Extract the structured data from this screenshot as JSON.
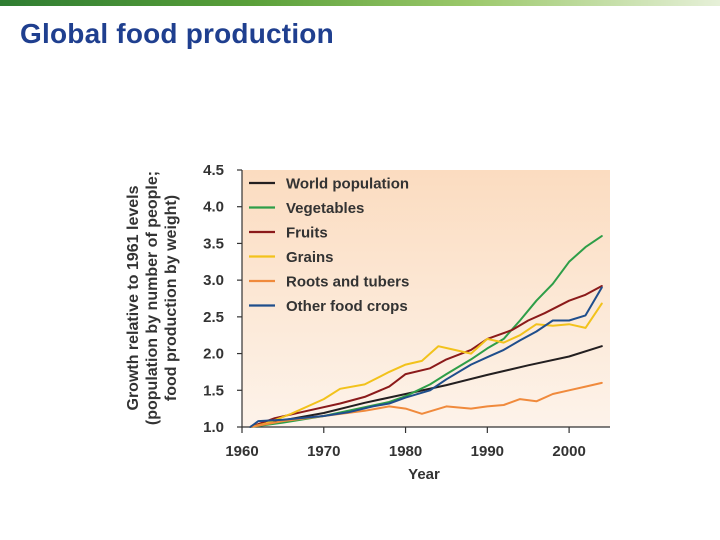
{
  "slide": {
    "title": "Global food production"
  },
  "chart_data": {
    "type": "line",
    "title": "",
    "xlabel": "Year",
    "ylabel": "Growth relative to 1961 levels (population by number of people; food production by weight)",
    "ylabel_lines": [
      "Growth relative to 1961 levels",
      "(population by number of people;",
      "food production by weight)"
    ],
    "xlim": [
      1960,
      2005
    ],
    "ylim": [
      1.0,
      4.5
    ],
    "xticks": [
      1960,
      1970,
      1980,
      1990,
      2000
    ],
    "xtick_labels": [
      "1960",
      "1970",
      "1980",
      "1990",
      "2000"
    ],
    "yticks": [
      1.0,
      1.5,
      2.0,
      2.5,
      3.0,
      3.5,
      4.0,
      4.5
    ],
    "ytick_labels": [
      "1.0",
      "1.5",
      "2.0",
      "2.5",
      "3.0",
      "3.5",
      "4.0",
      "4.5"
    ],
    "grid": false,
    "legend_position": "top-left",
    "background": "gradient-peach",
    "series": [
      {
        "name": "World population",
        "color": "#231f20",
        "x": [
          1961,
          1965,
          1970,
          1975,
          1980,
          1985,
          1990,
          1995,
          2000,
          2004
        ],
        "y": [
          1.0,
          1.09,
          1.19,
          1.33,
          1.45,
          1.57,
          1.71,
          1.84,
          1.96,
          2.1
        ]
      },
      {
        "name": "Vegetables",
        "color": "#2e9e48",
        "x": [
          1961,
          1965,
          1970,
          1975,
          1978,
          1980,
          1983,
          1985,
          1988,
          1990,
          1992,
          1994,
          1996,
          1998,
          2000,
          2002,
          2004
        ],
        "y": [
          1.0,
          1.06,
          1.15,
          1.27,
          1.34,
          1.42,
          1.58,
          1.72,
          1.92,
          2.07,
          2.2,
          2.45,
          2.72,
          2.95,
          3.25,
          3.45,
          3.6
        ]
      },
      {
        "name": "Fruits",
        "color": "#8b1a1a",
        "x": [
          1961,
          1964,
          1968,
          1972,
          1975,
          1978,
          1980,
          1983,
          1985,
          1988,
          1990,
          1993,
          1995,
          1997,
          2000,
          2002,
          2004
        ],
        "y": [
          1.0,
          1.12,
          1.22,
          1.32,
          1.41,
          1.55,
          1.72,
          1.8,
          1.92,
          2.05,
          2.2,
          2.32,
          2.45,
          2.55,
          2.72,
          2.8,
          2.92
        ]
      },
      {
        "name": "Grains",
        "color": "#f2c21b",
        "x": [
          1961,
          1963,
          1966,
          1970,
          1972,
          1975,
          1978,
          1980,
          1982,
          1984,
          1986,
          1988,
          1990,
          1992,
          1994,
          1996,
          1998,
          2000,
          2002,
          2004
        ],
        "y": [
          1.0,
          1.05,
          1.18,
          1.38,
          1.52,
          1.58,
          1.75,
          1.85,
          1.9,
          2.1,
          2.05,
          2.0,
          2.2,
          2.15,
          2.25,
          2.4,
          2.38,
          2.4,
          2.35,
          2.68
        ]
      },
      {
        "name": "Roots and tubers",
        "color": "#f08a3c",
        "x": [
          1961,
          1965,
          1970,
          1975,
          1978,
          1980,
          1982,
          1985,
          1988,
          1990,
          1992,
          1994,
          1996,
          1998,
          2000,
          2002,
          2004
        ],
        "y": [
          1.0,
          1.08,
          1.15,
          1.22,
          1.28,
          1.25,
          1.18,
          1.28,
          1.25,
          1.28,
          1.3,
          1.38,
          1.35,
          1.45,
          1.5,
          1.55,
          1.6
        ]
      },
      {
        "name": "Other food crops",
        "color": "#1f4e8c",
        "x": [
          1961,
          1962,
          1965,
          1970,
          1973,
          1976,
          1978,
          1980,
          1983,
          1985,
          1988,
          1990,
          1992,
          1994,
          1996,
          1998,
          2000,
          2002,
          2004
        ],
        "y": [
          1.0,
          1.08,
          1.1,
          1.15,
          1.2,
          1.28,
          1.32,
          1.4,
          1.5,
          1.65,
          1.85,
          1.95,
          2.05,
          2.18,
          2.3,
          2.45,
          2.45,
          2.52,
          2.9
        ]
      }
    ]
  }
}
